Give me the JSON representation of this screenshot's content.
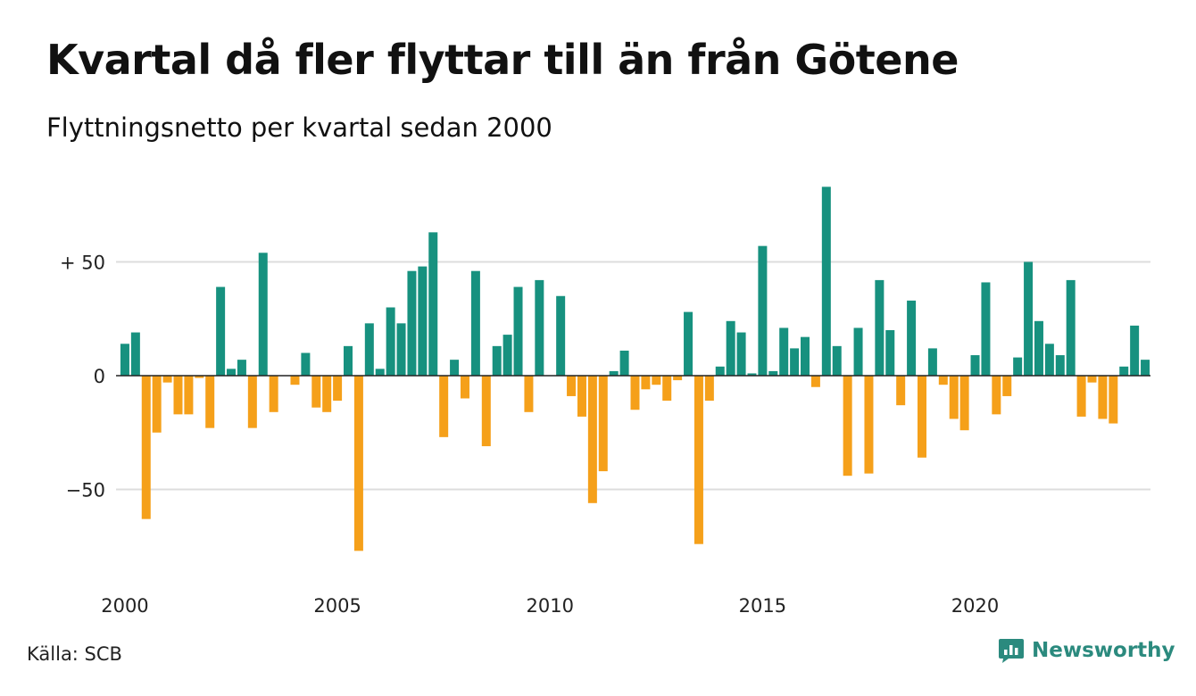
{
  "title": "Kvartal då fler flyttar till än från Götene",
  "subtitle": "Flyttningsnetto per kvartal sedan 2000",
  "source": "Källa: SCB",
  "brand": "Newsworthy",
  "colors": {
    "positive": "#17917f",
    "negative": "#f5a01a",
    "grid": "#dddddd",
    "brand": "#2b8a7e"
  },
  "icons": {
    "brand": "newsworthy-chart-bubble-icon"
  },
  "chart_data": {
    "type": "bar",
    "start_year": 2000,
    "x_ticks": [
      {
        "value": 2000,
        "label": "2000"
      },
      {
        "value": 2005,
        "label": "2005"
      },
      {
        "value": 2010,
        "label": "2010"
      },
      {
        "value": 2015,
        "label": "2015"
      },
      {
        "value": 2020,
        "label": "2020"
      }
    ],
    "y_ticks": [
      {
        "value": 50,
        "label": "+ 50"
      },
      {
        "value": 0,
        "label": "0"
      },
      {
        "value": -50,
        "label": "−50"
      }
    ],
    "ylim": [
      -85,
      85
    ],
    "grid": true,
    "values": [
      14,
      19,
      -63,
      -25,
      -3,
      -17,
      -17,
      -1,
      -23,
      39,
      3,
      7,
      -23,
      54,
      -16,
      0,
      -4,
      10,
      -14,
      -16,
      -11,
      13,
      -77,
      23,
      3,
      30,
      23,
      46,
      48,
      63,
      -27,
      7,
      -10,
      46,
      -31,
      13,
      18,
      39,
      -16,
      42,
      0,
      35,
      -9,
      -18,
      -56,
      -42,
      2,
      11,
      -15,
      -6,
      -4,
      -11,
      -2,
      28,
      -74,
      -11,
      4,
      24,
      19,
      1,
      57,
      2,
      21,
      12,
      17,
      -5,
      83,
      13,
      -44,
      21,
      -43,
      42,
      20,
      -13,
      33,
      -36,
      12,
      -4,
      -19,
      -24,
      9,
      41,
      -17,
      -9,
      8,
      50,
      24,
      14,
      9,
      42,
      -18,
      -3,
      -19,
      -21,
      4,
      22,
      7
    ]
  }
}
